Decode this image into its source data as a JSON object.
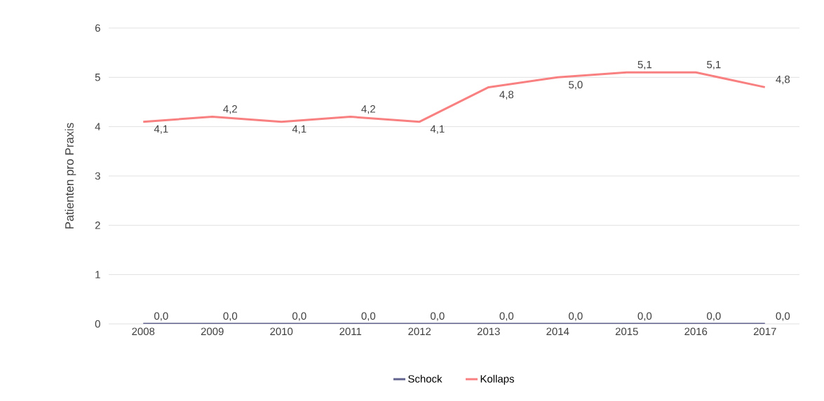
{
  "chart_data": {
    "type": "line",
    "ylabel": "Patienten pro Praxis",
    "categories": [
      "2008",
      "2009",
      "2010",
      "2011",
      "2012",
      "2013",
      "2014",
      "2015",
      "2016",
      "2017"
    ],
    "ylim": [
      0,
      6
    ],
    "yticks": [
      0,
      1,
      2,
      3,
      4,
      5,
      6
    ],
    "grid": "y",
    "legend": "bottom",
    "marker": "none",
    "line_style": "solid",
    "series": [
      {
        "name": "Schock",
        "color": "#62638f",
        "values": [
          0,
          0,
          0,
          0,
          0,
          0,
          0,
          0,
          0,
          0
        ],
        "value_labels": [
          "0,0",
          "0,0",
          "0,0",
          "0,0",
          "0,0",
          "0,0",
          "0,0",
          "0,0",
          "0,0",
          "0,0"
        ]
      },
      {
        "name": "Kollaps",
        "color": "#f98080",
        "values": [
          4.1,
          4.2,
          4.1,
          4.2,
          4.1,
          4.8,
          5.0,
          5.1,
          5.1,
          4.8
        ],
        "value_labels": [
          "4,1",
          "4,2",
          "4,1",
          "4,2",
          "4,1",
          "4,8",
          "5,0",
          "5,1",
          "5,1",
          "4,8"
        ]
      }
    ]
  }
}
